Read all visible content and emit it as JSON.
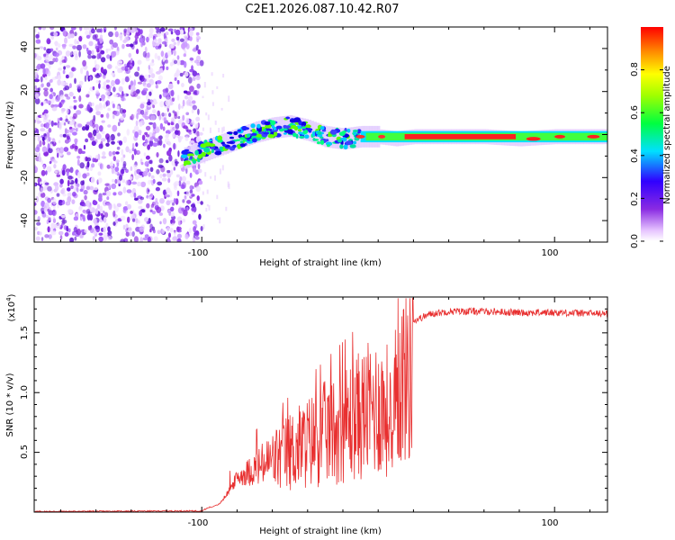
{
  "figure": {
    "title": "C2E1.2026.087.10.42.R07"
  },
  "chart_data": [
    {
      "type": "heatmap",
      "title": "C2E1.2026.087.10.42.R07",
      "xlabel": "Height of straight line (km)",
      "ylabel": "Frequency (Hz)",
      "xlim": [
        -195,
        130
      ],
      "ylim": [
        -50,
        50
      ],
      "xticks": [
        -100,
        100
      ],
      "xtick_labels": [
        "-100",
        "100"
      ],
      "yticks": [
        -40,
        -20,
        0,
        20,
        40
      ],
      "ytick_labels": [
        "-40",
        "-20",
        "0",
        "20",
        "40"
      ],
      "noise_region_x": [
        -195,
        -100
      ],
      "signal_ridge": {
        "x": [
          -110,
          -100,
          -90,
          -80,
          -70,
          -60,
          -50,
          -40,
          -30,
          -20,
          -10,
          0,
          10,
          20,
          40,
          60,
          80,
          100,
          130
        ],
        "freq_hz": [
          -11,
          -8,
          -5,
          -2,
          1,
          3,
          4,
          2,
          -1,
          -2,
          -1,
          -1,
          -2,
          -1,
          -1,
          -1,
          -2,
          -1,
          -1
        ]
      },
      "colorbar": {
        "label": "Normalized spectral amplitude",
        "range": [
          0,
          1
        ],
        "ticks": [
          0.0,
          0.2,
          0.4,
          0.6,
          0.8
        ],
        "tick_labels": [
          "0.0",
          "0.2",
          "0.4",
          "0.6",
          "0.8"
        ]
      }
    },
    {
      "type": "line",
      "xlabel": "Height of straight line (km)",
      "ylabel": "SNR (10 * v/v)",
      "exponent_label": "(x10",
      "exponent_sup": "4",
      "xlim": [
        -195,
        130
      ],
      "ylim": [
        0,
        1.8
      ],
      "xticks": [
        -100,
        100
      ],
      "xtick_labels": [
        "-100",
        "100"
      ],
      "yticks": [
        0.5,
        1.0,
        1.5
      ],
      "ytick_labels": [
        "0.5",
        "1.0",
        "1.5"
      ],
      "line_color": "#e83030",
      "envelope": {
        "x": [
          -195,
          -100,
          -90,
          -85,
          -80,
          -70,
          -60,
          -50,
          -40,
          -30,
          -20,
          -10,
          0,
          5,
          8,
          10,
          15,
          20,
          30,
          40,
          60,
          80,
          100,
          130
        ],
        "y": [
          0.005,
          0.01,
          0.08,
          0.2,
          0.35,
          0.45,
          0.55,
          0.65,
          0.75,
          0.85,
          0.95,
          1.05,
          1.15,
          1.1,
          0.55,
          1.3,
          1.5,
          1.6,
          1.66,
          1.68,
          1.68,
          1.67,
          1.67,
          1.66
        ]
      }
    }
  ]
}
